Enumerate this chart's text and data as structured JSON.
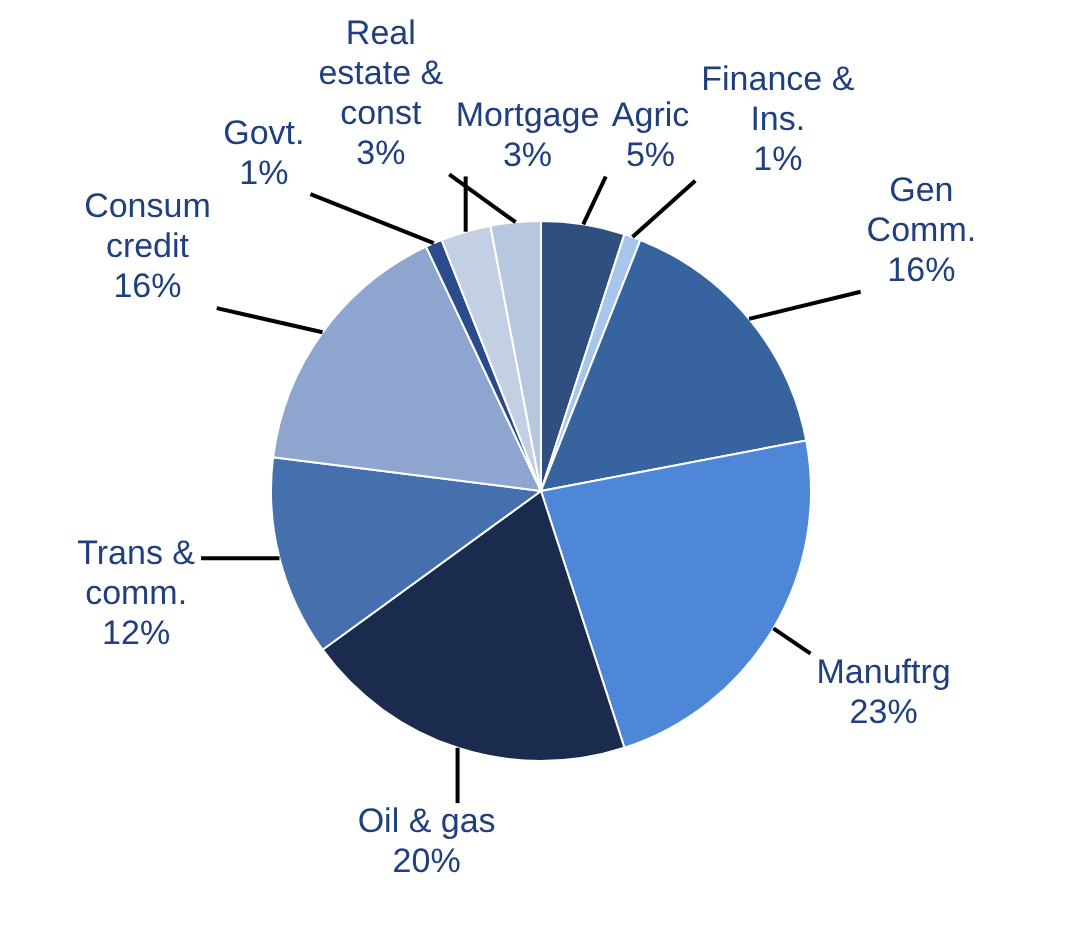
{
  "chart_data": {
    "type": "pie",
    "categories": [
      "Agric",
      "Finance & Ins.",
      "Gen Comm.",
      "Manuftrg",
      "Oil & gas",
      "Trans & comm.",
      "Consum credit",
      "Govt.",
      "Mortgage",
      "Real estate & const"
    ],
    "values": [
      5,
      1,
      16,
      23,
      20,
      12,
      16,
      1,
      3,
      3
    ],
    "value_labels": [
      "5%",
      "1%",
      "16%",
      "23%",
      "20%",
      "12%",
      "16%",
      "1%",
      "3%",
      "3%"
    ],
    "colors": [
      "#2f4f7f",
      "#a8c6ec",
      "#37649f",
      "#4f87d8",
      "#1b2b4d",
      "#4570ad",
      "#8ea6cf",
      "#2b4c8c",
      "#c3d0e3",
      "#b7c7df"
    ],
    "legend": false
  }
}
